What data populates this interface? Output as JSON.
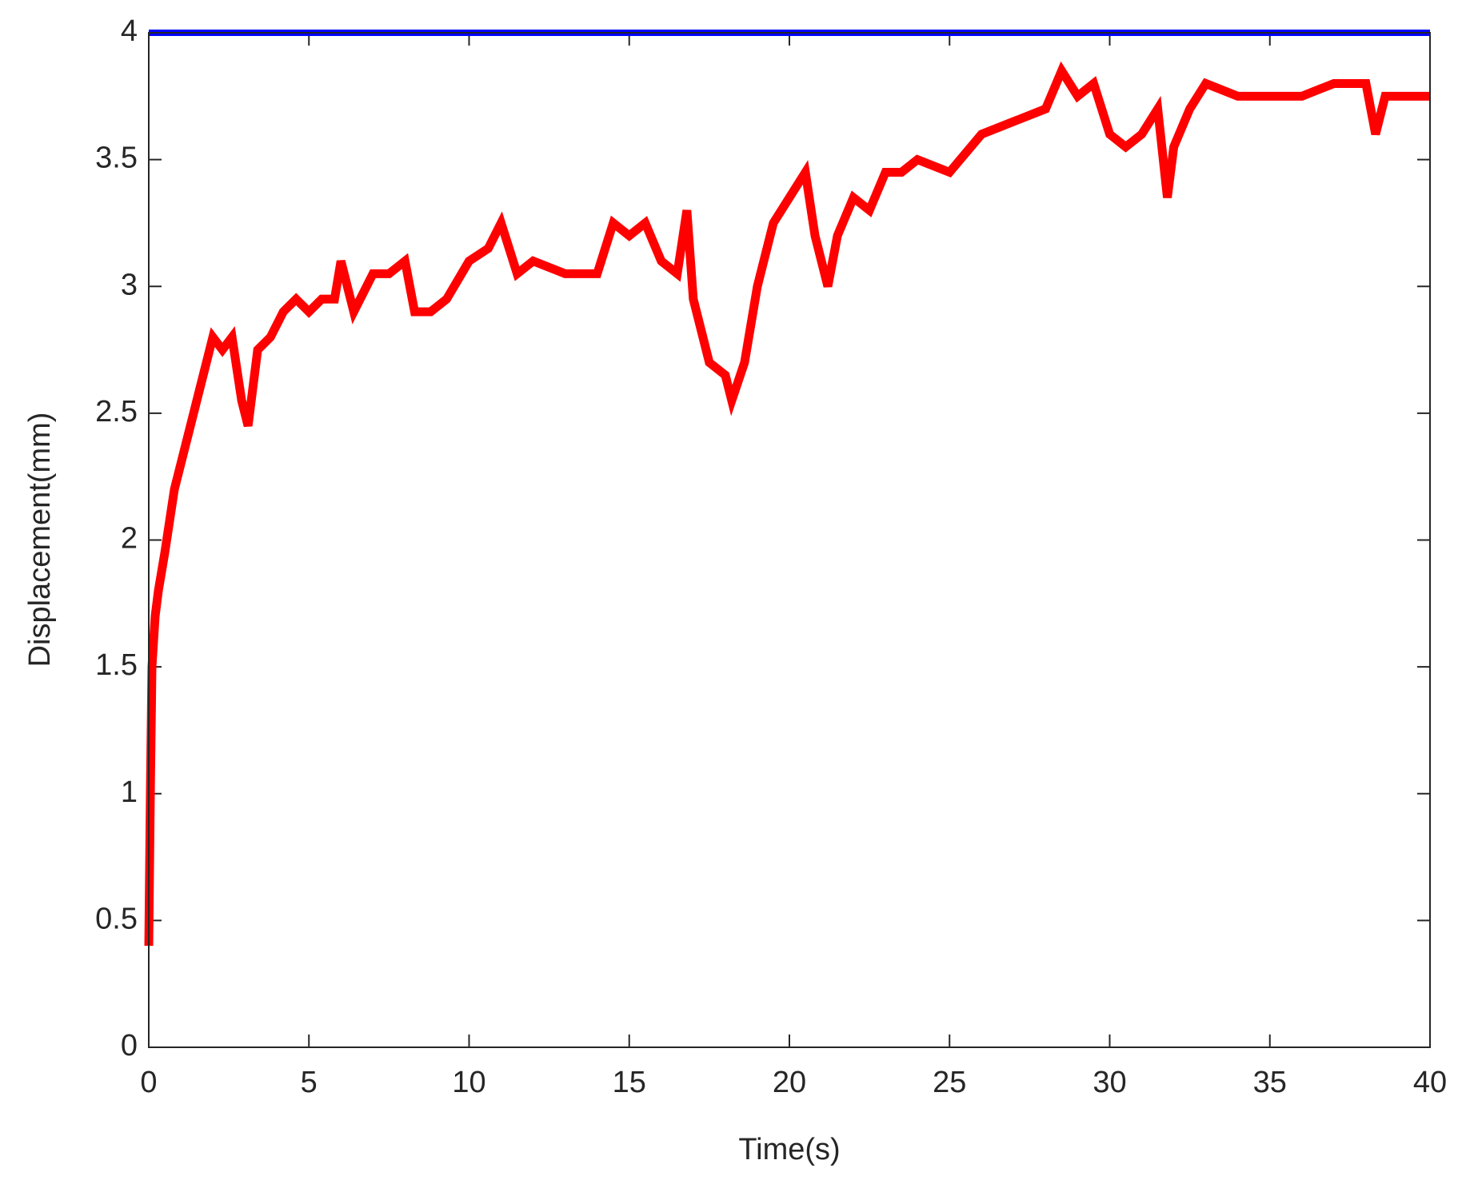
{
  "chart_data": {
    "type": "line",
    "xlabel": "Time(s)",
    "ylabel": "Displacement(mm)",
    "xlim": [
      0,
      40
    ],
    "ylim": [
      0,
      4
    ],
    "xticks": [
      0,
      5,
      10,
      15,
      20,
      25,
      30,
      35,
      40
    ],
    "yticks": [
      0,
      0.5,
      1,
      1.5,
      2,
      2.5,
      3,
      3.5,
      4
    ],
    "grid": false,
    "series": [
      {
        "color": "#0000ff",
        "x": [
          0,
          40
        ],
        "values": [
          4,
          4
        ]
      },
      {
        "color": "#ff0000",
        "x": [
          0,
          0.05,
          0.1,
          0.2,
          0.3,
          0.5,
          0.8,
          1,
          1.3,
          1.6,
          2,
          2.3,
          2.6,
          2.9,
          3.1,
          3.4,
          3.8,
          4.2,
          4.6,
          5,
          5.4,
          5.8,
          6,
          6.4,
          7,
          7.5,
          8,
          8.3,
          8.8,
          9.3,
          10,
          10.6,
          11,
          11.5,
          12,
          13,
          14,
          14.5,
          15,
          15.5,
          16,
          16.5,
          16.8,
          17,
          17.5,
          18,
          18.2,
          18.6,
          19,
          19.5,
          20,
          20.5,
          20.8,
          21.2,
          21.5,
          22,
          22.5,
          23,
          23.5,
          24,
          25,
          26,
          27,
          28,
          28.5,
          29,
          29.5,
          30,
          30.5,
          31,
          31.5,
          31.8,
          32,
          32.5,
          33,
          34,
          35,
          36,
          37,
          38,
          38.3,
          38.6,
          39,
          40
        ],
        "values": [
          0.4,
          1.0,
          1.5,
          1.7,
          1.8,
          1.95,
          2.2,
          2.3,
          2.45,
          2.6,
          2.8,
          2.75,
          2.8,
          2.55,
          2.45,
          2.75,
          2.8,
          2.9,
          2.95,
          2.9,
          2.95,
          2.95,
          3.1,
          2.9,
          3.05,
          3.05,
          3.1,
          2.9,
          2.9,
          2.95,
          3.1,
          3.15,
          3.25,
          3.05,
          3.1,
          3.05,
          3.05,
          3.25,
          3.2,
          3.25,
          3.1,
          3.05,
          3.3,
          2.95,
          2.7,
          2.65,
          2.55,
          2.7,
          3.0,
          3.25,
          3.35,
          3.45,
          3.2,
          3.0,
          3.2,
          3.35,
          3.3,
          3.45,
          3.45,
          3.5,
          3.45,
          3.6,
          3.65,
          3.7,
          3.85,
          3.75,
          3.8,
          3.6,
          3.55,
          3.6,
          3.7,
          3.35,
          3.55,
          3.7,
          3.8,
          3.75,
          3.75,
          3.75,
          3.8,
          3.8,
          3.6,
          3.75,
          3.75,
          3.75
        ]
      }
    ]
  }
}
